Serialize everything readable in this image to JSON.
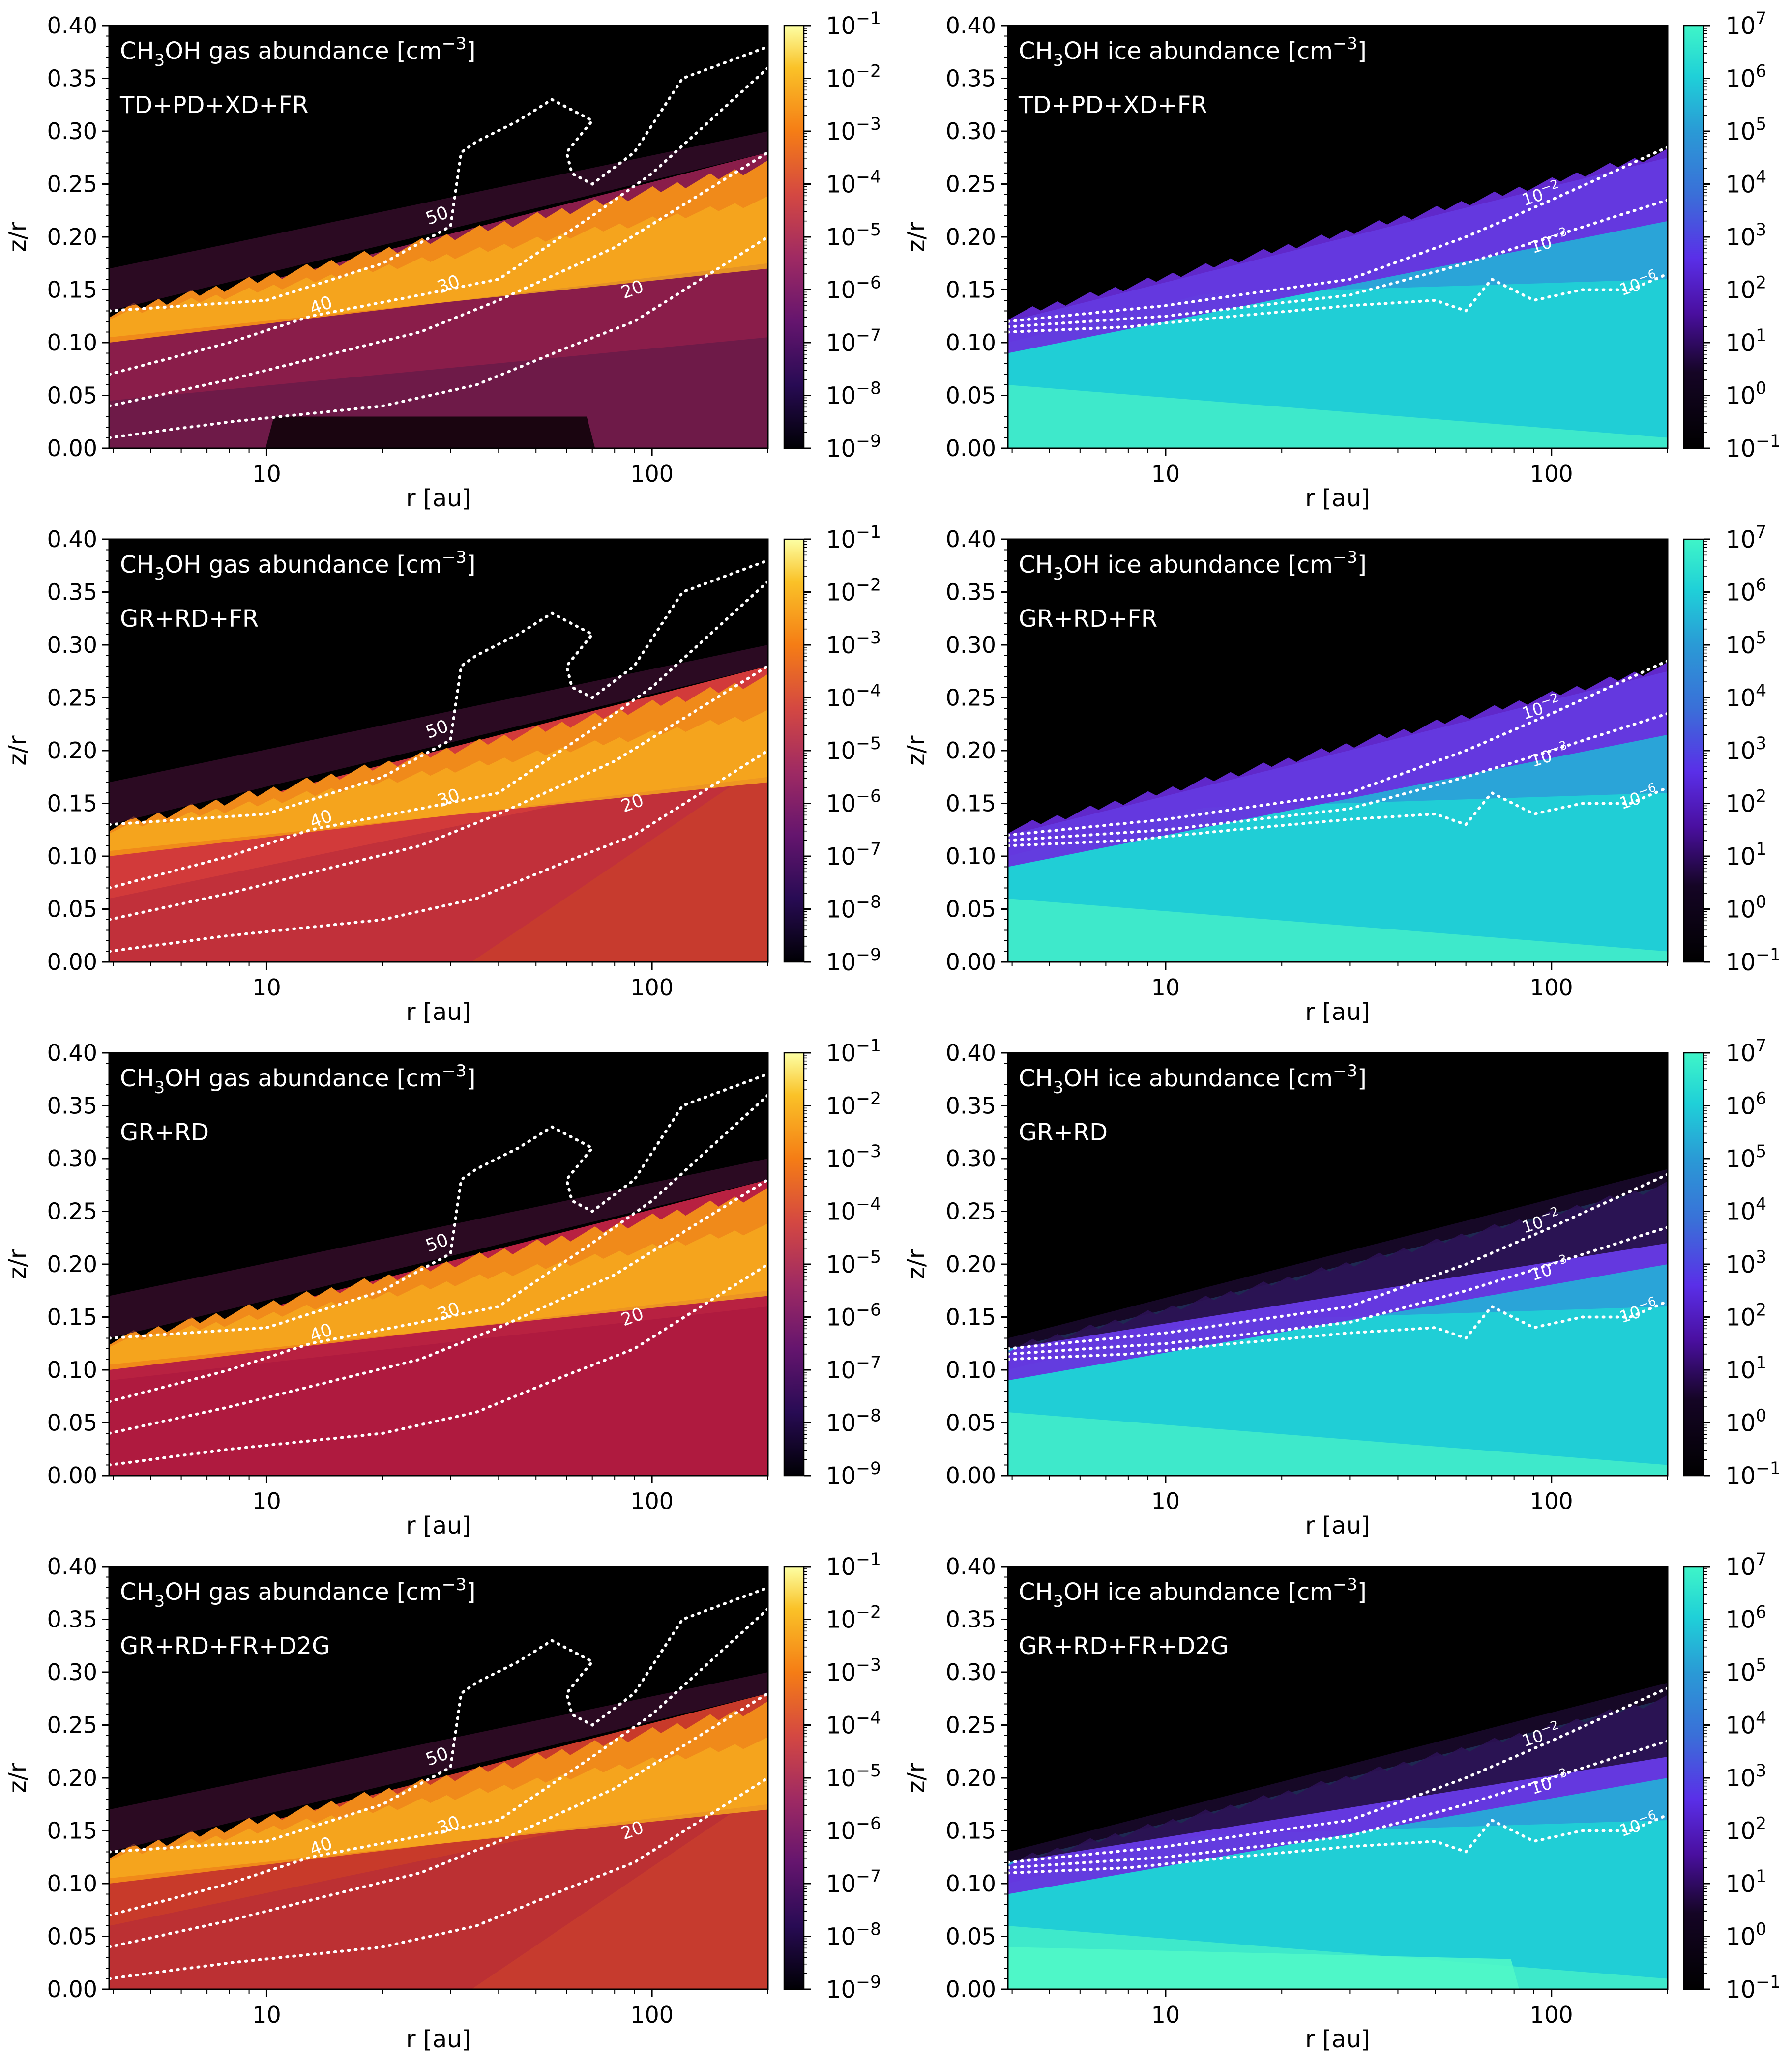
{
  "chart_data": [
    {
      "type": "heatmap",
      "title": "CH3OH gas abundance [cm-3]",
      "title_parts": {
        "pre": "CH",
        "sub": "3",
        "mid": "OH gas abundance [cm",
        "sup": "−3",
        "post": "]"
      },
      "model": "TD+PD+XD+FR",
      "xlabel": "r [au]",
      "ylabel": "z/r",
      "xscale": "log",
      "xlim": [
        3.9,
        200
      ],
      "ylim": [
        0,
        0.4
      ],
      "xticks": [
        "10",
        "100"
      ],
      "yticks": [
        "0.00",
        "0.05",
        "0.10",
        "0.15",
        "0.20",
        "0.25",
        "0.30",
        "0.35",
        "0.40"
      ],
      "colormap": "inferno",
      "colorbar": {
        "range": [
          1e-09,
          0.1
        ],
        "ticks": [
          [
            "10",
            "−1"
          ],
          [
            "10",
            "−2"
          ],
          [
            "10",
            "−3"
          ],
          [
            "10",
            "−4"
          ],
          [
            "10",
            "−5"
          ],
          [
            "10",
            "−6"
          ],
          [
            "10",
            "−7"
          ],
          [
            "10",
            "−8"
          ],
          [
            "10",
            "−9"
          ]
        ]
      },
      "contours": [
        "50",
        "40",
        "30",
        "20"
      ]
    },
    {
      "type": "heatmap",
      "title": "CH3OH ice abundance [cm-3]",
      "title_parts": {
        "pre": "CH",
        "sub": "3",
        "mid": "OH ice abundance [cm",
        "sup": "−3",
        "post": "]"
      },
      "model": "TD+PD+XD+FR",
      "xlabel": "r [au]",
      "ylabel": "z/r",
      "xscale": "log",
      "xlim": [
        3.9,
        200
      ],
      "ylim": [
        0,
        0.4
      ],
      "xticks": [
        "10",
        "100"
      ],
      "yticks": [
        "0.00",
        "0.05",
        "0.10",
        "0.15",
        "0.20",
        "0.25",
        "0.30",
        "0.35",
        "0.40"
      ],
      "colormap": "cyan-blue-purple-black",
      "colorbar": {
        "range": [
          0.1,
          10000000.0
        ],
        "ticks": [
          [
            "10",
            "7"
          ],
          [
            "10",
            "6"
          ],
          [
            "10",
            "5"
          ],
          [
            "10",
            "4"
          ],
          [
            "10",
            "3"
          ],
          [
            "10",
            "2"
          ],
          [
            "10",
            "1"
          ],
          [
            "10",
            "0"
          ],
          [
            "10",
            "−1"
          ]
        ]
      },
      "contours": [
        [
          "10",
          "−2"
        ],
        [
          "10",
          "−3"
        ],
        [
          "10",
          "−6"
        ]
      ]
    },
    {
      "type": "heatmap",
      "title": "CH3OH gas abundance [cm-3]",
      "title_parts": {
        "pre": "CH",
        "sub": "3",
        "mid": "OH gas abundance [cm",
        "sup": "−3",
        "post": "]"
      },
      "model": "GR+RD+FR",
      "xlabel": "r [au]",
      "ylabel": "z/r",
      "xscale": "log",
      "xlim": [
        3.9,
        200
      ],
      "ylim": [
        0,
        0.4
      ],
      "xticks": [
        "10",
        "100"
      ],
      "yticks": [
        "0.00",
        "0.05",
        "0.10",
        "0.15",
        "0.20",
        "0.25",
        "0.30",
        "0.35",
        "0.40"
      ],
      "colormap": "inferno",
      "colorbar": {
        "range": [
          1e-09,
          0.1
        ],
        "ticks": [
          [
            "10",
            "−1"
          ],
          [
            "10",
            "−2"
          ],
          [
            "10",
            "−3"
          ],
          [
            "10",
            "−4"
          ],
          [
            "10",
            "−5"
          ],
          [
            "10",
            "−6"
          ],
          [
            "10",
            "−7"
          ],
          [
            "10",
            "−8"
          ],
          [
            "10",
            "−9"
          ]
        ]
      },
      "contours": [
        "50",
        "40",
        "30",
        "20"
      ]
    },
    {
      "type": "heatmap",
      "title": "CH3OH ice abundance [cm-3]",
      "title_parts": {
        "pre": "CH",
        "sub": "3",
        "mid": "OH ice abundance [cm",
        "sup": "−3",
        "post": "]"
      },
      "model": "GR+RD+FR",
      "xlabel": "r [au]",
      "ylabel": "z/r",
      "xscale": "log",
      "xlim": [
        3.9,
        200
      ],
      "ylim": [
        0,
        0.4
      ],
      "xticks": [
        "10",
        "100"
      ],
      "yticks": [
        "0.00",
        "0.05",
        "0.10",
        "0.15",
        "0.20",
        "0.25",
        "0.30",
        "0.35",
        "0.40"
      ],
      "colormap": "cyan-blue-purple-black",
      "colorbar": {
        "range": [
          0.1,
          10000000.0
        ],
        "ticks": [
          [
            "10",
            "7"
          ],
          [
            "10",
            "6"
          ],
          [
            "10",
            "5"
          ],
          [
            "10",
            "4"
          ],
          [
            "10",
            "3"
          ],
          [
            "10",
            "2"
          ],
          [
            "10",
            "1"
          ],
          [
            "10",
            "0"
          ],
          [
            "10",
            "−1"
          ]
        ]
      },
      "contours": [
        [
          "10",
          "−2"
        ],
        [
          "10",
          "−3"
        ],
        [
          "10",
          "−6"
        ]
      ]
    },
    {
      "type": "heatmap",
      "title": "CH3OH gas abundance [cm-3]",
      "title_parts": {
        "pre": "CH",
        "sub": "3",
        "mid": "OH gas abundance [cm",
        "sup": "−3",
        "post": "]"
      },
      "model": "GR+RD",
      "xlabel": "r [au]",
      "ylabel": "z/r",
      "xscale": "log",
      "xlim": [
        3.9,
        200
      ],
      "ylim": [
        0,
        0.4
      ],
      "xticks": [
        "10",
        "100"
      ],
      "yticks": [
        "0.00",
        "0.05",
        "0.10",
        "0.15",
        "0.20",
        "0.25",
        "0.30",
        "0.35",
        "0.40"
      ],
      "colormap": "inferno",
      "colorbar": {
        "range": [
          1e-09,
          0.1
        ],
        "ticks": [
          [
            "10",
            "−1"
          ],
          [
            "10",
            "−2"
          ],
          [
            "10",
            "−3"
          ],
          [
            "10",
            "−4"
          ],
          [
            "10",
            "−5"
          ],
          [
            "10",
            "−6"
          ],
          [
            "10",
            "−7"
          ],
          [
            "10",
            "−8"
          ],
          [
            "10",
            "−9"
          ]
        ]
      },
      "contours": [
        "50",
        "40",
        "30",
        "20"
      ]
    },
    {
      "type": "heatmap",
      "title": "CH3OH ice abundance [cm-3]",
      "title_parts": {
        "pre": "CH",
        "sub": "3",
        "mid": "OH ice abundance [cm",
        "sup": "−3",
        "post": "]"
      },
      "model": "GR+RD",
      "xlabel": "r [au]",
      "ylabel": "z/r",
      "xscale": "log",
      "xlim": [
        3.9,
        200
      ],
      "ylim": [
        0,
        0.4
      ],
      "xticks": [
        "10",
        "100"
      ],
      "yticks": [
        "0.00",
        "0.05",
        "0.10",
        "0.15",
        "0.20",
        "0.25",
        "0.30",
        "0.35",
        "0.40"
      ],
      "colormap": "cyan-blue-purple-black",
      "colorbar": {
        "range": [
          0.1,
          10000000.0
        ],
        "ticks": [
          [
            "10",
            "7"
          ],
          [
            "10",
            "6"
          ],
          [
            "10",
            "5"
          ],
          [
            "10",
            "4"
          ],
          [
            "10",
            "3"
          ],
          [
            "10",
            "2"
          ],
          [
            "10",
            "1"
          ],
          [
            "10",
            "0"
          ],
          [
            "10",
            "−1"
          ]
        ]
      },
      "contours": [
        [
          "10",
          "−2"
        ],
        [
          "10",
          "−3"
        ],
        [
          "10",
          "−6"
        ]
      ]
    },
    {
      "type": "heatmap",
      "title": "CH3OH gas abundance [cm-3]",
      "title_parts": {
        "pre": "CH",
        "sub": "3",
        "mid": "OH gas abundance [cm",
        "sup": "−3",
        "post": "]"
      },
      "model": "GR+RD+FR+D2G",
      "xlabel": "r [au]",
      "ylabel": "z/r",
      "xscale": "log",
      "xlim": [
        3.9,
        200
      ],
      "ylim": [
        0,
        0.4
      ],
      "xticks": [
        "10",
        "100"
      ],
      "yticks": [
        "0.00",
        "0.05",
        "0.10",
        "0.15",
        "0.20",
        "0.25",
        "0.30",
        "0.35",
        "0.40"
      ],
      "colormap": "inferno",
      "colorbar": {
        "range": [
          1e-09,
          0.1
        ],
        "ticks": [
          [
            "10",
            "−1"
          ],
          [
            "10",
            "−2"
          ],
          [
            "10",
            "−3"
          ],
          [
            "10",
            "−4"
          ],
          [
            "10",
            "−5"
          ],
          [
            "10",
            "−6"
          ],
          [
            "10",
            "−7"
          ],
          [
            "10",
            "−8"
          ],
          [
            "10",
            "−9"
          ]
        ]
      },
      "contours": [
        "50",
        "40",
        "30",
        "20"
      ]
    },
    {
      "type": "heatmap",
      "title": "CH3OH ice abundance [cm-3]",
      "title_parts": {
        "pre": "CH",
        "sub": "3",
        "mid": "OH ice abundance [cm",
        "sup": "−3",
        "post": "]"
      },
      "model": "GR+RD+FR+D2G",
      "xlabel": "r [au]",
      "ylabel": "z/r",
      "xscale": "log",
      "xlim": [
        3.9,
        200
      ],
      "ylim": [
        0,
        0.4
      ],
      "xticks": [
        "10",
        "100"
      ],
      "yticks": [
        "0.00",
        "0.05",
        "0.10",
        "0.15",
        "0.20",
        "0.25",
        "0.30",
        "0.35",
        "0.40"
      ],
      "colormap": "cyan-blue-purple-black",
      "colorbar": {
        "range": [
          0.1,
          10000000.0
        ],
        "ticks": [
          [
            "10",
            "7"
          ],
          [
            "10",
            "6"
          ],
          [
            "10",
            "5"
          ],
          [
            "10",
            "4"
          ],
          [
            "10",
            "3"
          ],
          [
            "10",
            "2"
          ],
          [
            "10",
            "1"
          ],
          [
            "10",
            "0"
          ],
          [
            "10",
            "−1"
          ]
        ]
      },
      "contours": [
        [
          "10",
          "−2"
        ],
        [
          "10",
          "−3"
        ],
        [
          "10",
          "−6"
        ]
      ]
    }
  ]
}
